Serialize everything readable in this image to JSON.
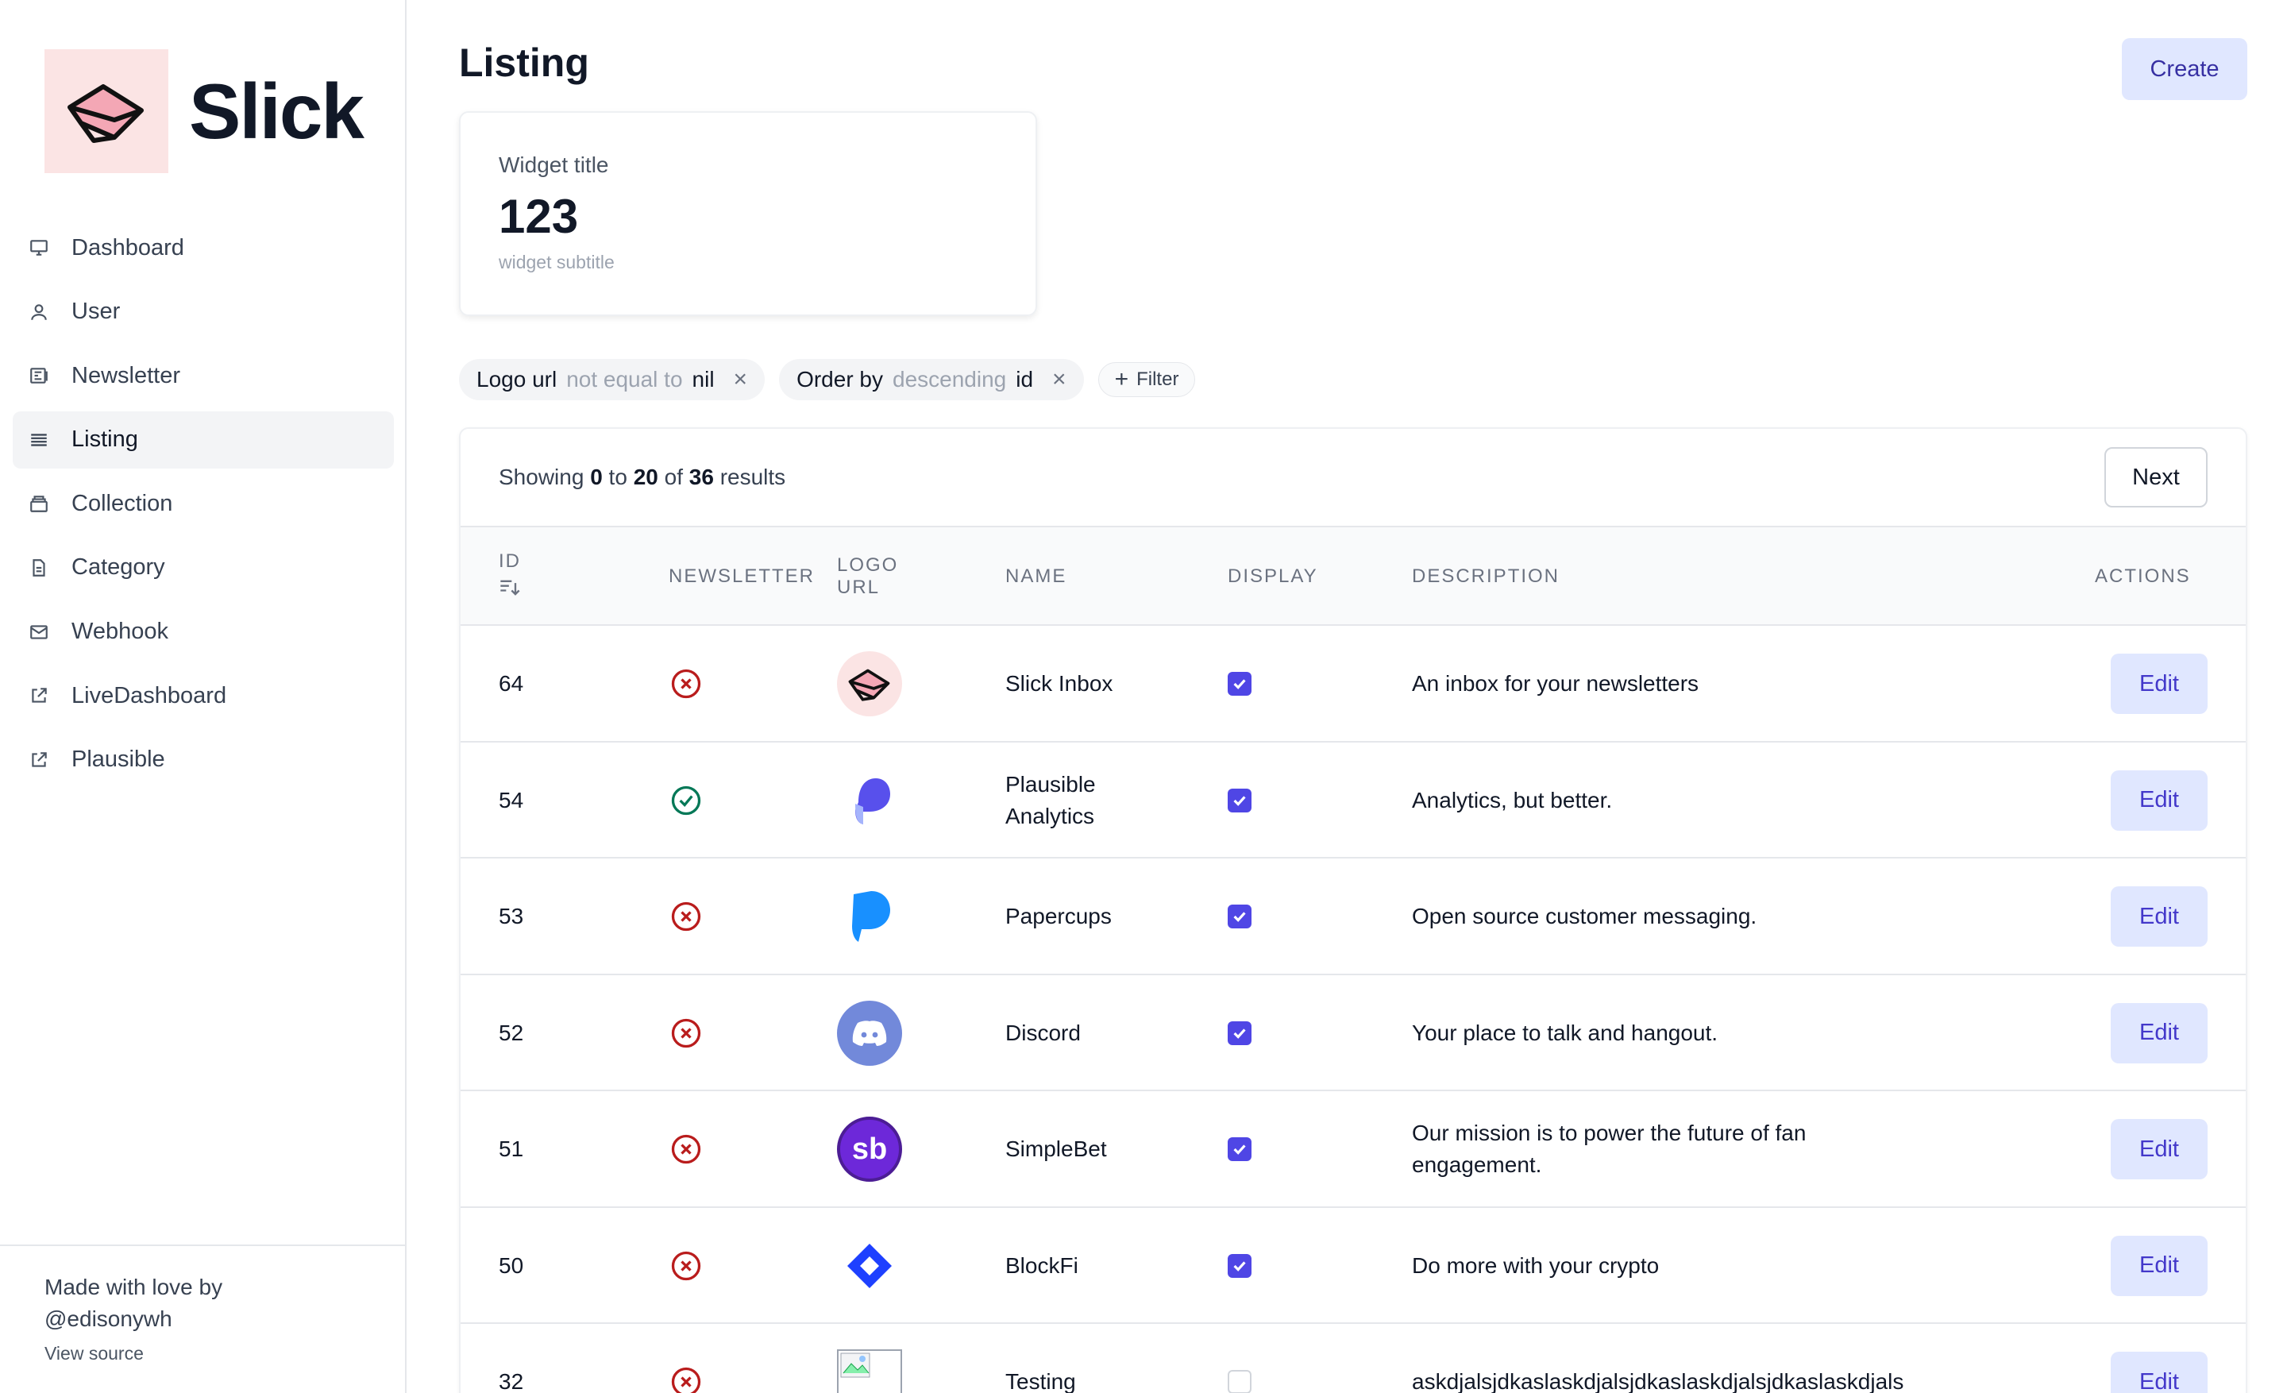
{
  "brand": {
    "name": "Slick",
    "logo_icon": "envelope-icon"
  },
  "sidebar": {
    "items": [
      {
        "label": "Dashboard",
        "icon": "monitor-icon",
        "active": false
      },
      {
        "label": "User",
        "icon": "user-icon",
        "active": false
      },
      {
        "label": "Newsletter",
        "icon": "newspaper-icon",
        "active": false
      },
      {
        "label": "Listing",
        "icon": "list-icon",
        "active": true
      },
      {
        "label": "Collection",
        "icon": "collection-icon",
        "active": false
      },
      {
        "label": "Category",
        "icon": "document-icon",
        "active": false
      },
      {
        "label": "Webhook",
        "icon": "mail-icon",
        "active": false
      },
      {
        "label": "LiveDashboard",
        "icon": "external-link-icon",
        "active": false
      },
      {
        "label": "Plausible",
        "icon": "external-link-icon",
        "active": false
      }
    ],
    "footer": {
      "line1": "Made with love by",
      "line2": "@edisonywh",
      "link": "View source"
    }
  },
  "header": {
    "title": "Listing",
    "create_label": "Create"
  },
  "widget": {
    "title": "Widget title",
    "value": "123",
    "subtitle": "widget subtitle"
  },
  "filters": [
    {
      "field": "Logo url",
      "operator": "not equal to",
      "value": "nil"
    },
    {
      "field": "Order by",
      "operator": "descending",
      "value": "id"
    }
  ],
  "filter_button": "Filter",
  "pagination": {
    "prefix": "Showing",
    "from": "0",
    "to_word": "to",
    "to": "20",
    "of_word": "of",
    "total": "36",
    "suffix": "results",
    "next_label": "Next"
  },
  "table": {
    "columns": [
      "ID",
      "NEWSLETTER",
      "LOGO URL",
      "NAME",
      "DISPLAY",
      "DESCRIPTION",
      "ACTIONS"
    ],
    "edit_label": "Edit",
    "rows": [
      {
        "id": "64",
        "newsletter": false,
        "logo": "slick",
        "name": "Slick Inbox",
        "display": true,
        "description": "An inbox for your newsletters"
      },
      {
        "id": "54",
        "newsletter": true,
        "logo": "plausible",
        "name": "Plausible Analytics",
        "display": true,
        "description": "Analytics, but better."
      },
      {
        "id": "53",
        "newsletter": false,
        "logo": "papercups",
        "name": "Papercups",
        "display": true,
        "description": "Open source customer messaging."
      },
      {
        "id": "52",
        "newsletter": false,
        "logo": "discord",
        "name": "Discord",
        "display": true,
        "description": "Your place to talk and hangout."
      },
      {
        "id": "51",
        "newsletter": false,
        "logo": "simplebet",
        "logo_text": "sb",
        "name": "SimpleBet",
        "display": true,
        "description": "Our mission is to power the future of fan engagement."
      },
      {
        "id": "50",
        "newsletter": false,
        "logo": "blockfi",
        "name": "BlockFi",
        "display": true,
        "description": "Do more with your crypto"
      },
      {
        "id": "32",
        "newsletter": false,
        "logo": "broken-image",
        "name": "Testing",
        "display": false,
        "description": "askdjalsjdkaslaskdjalsjdkaslaskdjalsjdkaslaskdjals"
      }
    ]
  },
  "colors": {
    "accent": "#4f46e5",
    "accent_light": "#e0e7ff",
    "error": "#b91c1c",
    "success": "#047857"
  }
}
